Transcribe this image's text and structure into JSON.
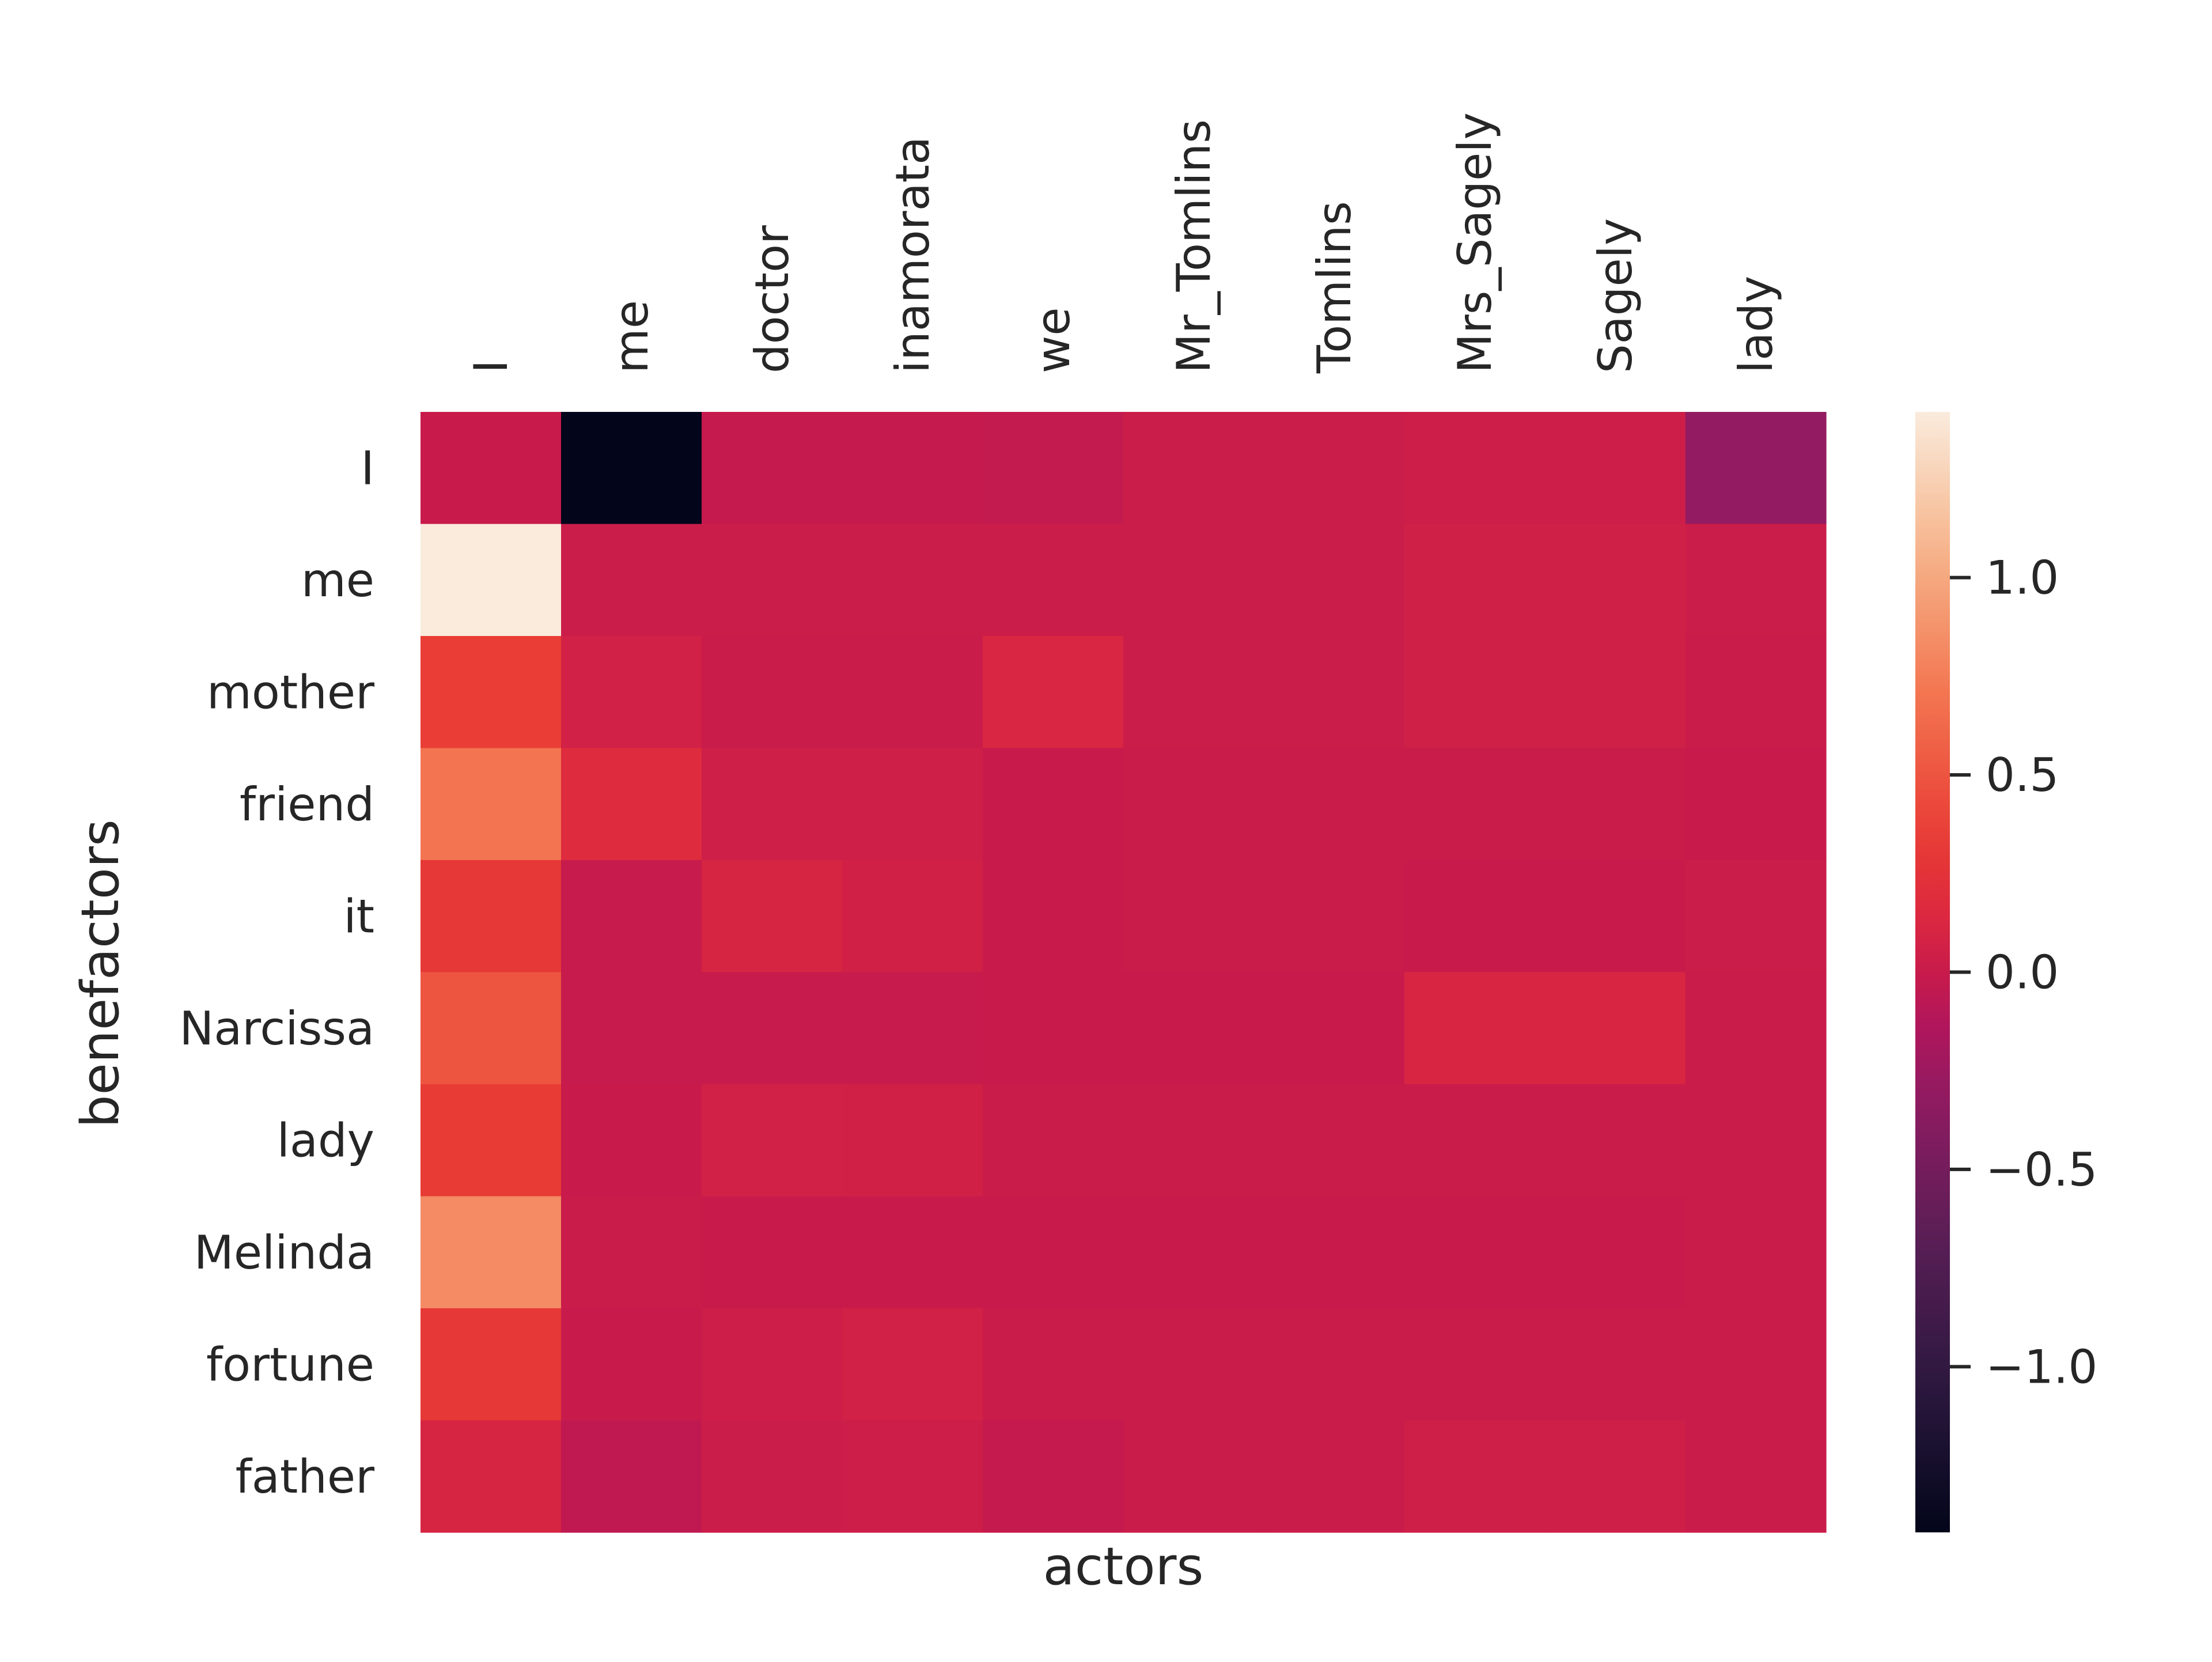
{
  "chart_data": {
    "type": "heatmap",
    "title": "",
    "xlabel": "actors",
    "ylabel": "benefactors",
    "x_categories": [
      "I",
      "me",
      "doctor",
      "inamorata",
      "we",
      "Mr_Tomlins",
      "Tomlins",
      "Mrs_Sagely",
      "Sagely",
      "lady"
    ],
    "y_categories": [
      "I",
      "me",
      "mother",
      "friend",
      "it",
      "Narcissa",
      "lady",
      "Melinda",
      "fortune",
      "father"
    ],
    "values": [
      [
        0.0,
        -1.42,
        -0.02,
        -0.02,
        -0.03,
        0.02,
        0.02,
        0.03,
        0.03,
        -0.3
      ],
      [
        1.42,
        0.02,
        0.02,
        0.02,
        0.02,
        0.02,
        0.02,
        0.05,
        0.05,
        0.02
      ],
      [
        0.35,
        0.07,
        0.01,
        0.01,
        0.12,
        0.02,
        0.02,
        0.05,
        0.05,
        0.01
      ],
      [
        0.7,
        0.17,
        0.04,
        0.04,
        0.0,
        0.01,
        0.01,
        0.01,
        0.01,
        0.0
      ],
      [
        0.3,
        -0.01,
        0.1,
        0.06,
        0.0,
        0.01,
        0.01,
        0.0,
        0.0,
        0.02
      ],
      [
        0.5,
        -0.01,
        -0.01,
        -0.01,
        0.0,
        0.0,
        0.0,
        0.11,
        0.11,
        0.01
      ],
      [
        0.33,
        0.0,
        0.07,
        0.06,
        0.01,
        0.01,
        0.01,
        0.01,
        0.01,
        0.01
      ],
      [
        0.83,
        0.01,
        0.0,
        0.0,
        0.0,
        0.0,
        0.0,
        0.0,
        0.0,
        0.01
      ],
      [
        0.3,
        0.0,
        0.03,
        0.07,
        0.01,
        0.01,
        0.01,
        0.01,
        0.01,
        0.01
      ],
      [
        0.1,
        -0.05,
        0.02,
        0.03,
        -0.02,
        0.01,
        0.01,
        0.04,
        0.04,
        0.01
      ]
    ],
    "vmin": -1.42,
    "vmax": 1.42,
    "colormap": "rocket",
    "colorbar_ticks": [
      1.0,
      0.5,
      0.0,
      -0.5,
      -1.0
    ],
    "colorbar_tick_labels": [
      "1.0",
      "0.5",
      "0.0",
      "−0.5",
      "−1.0"
    ]
  }
}
